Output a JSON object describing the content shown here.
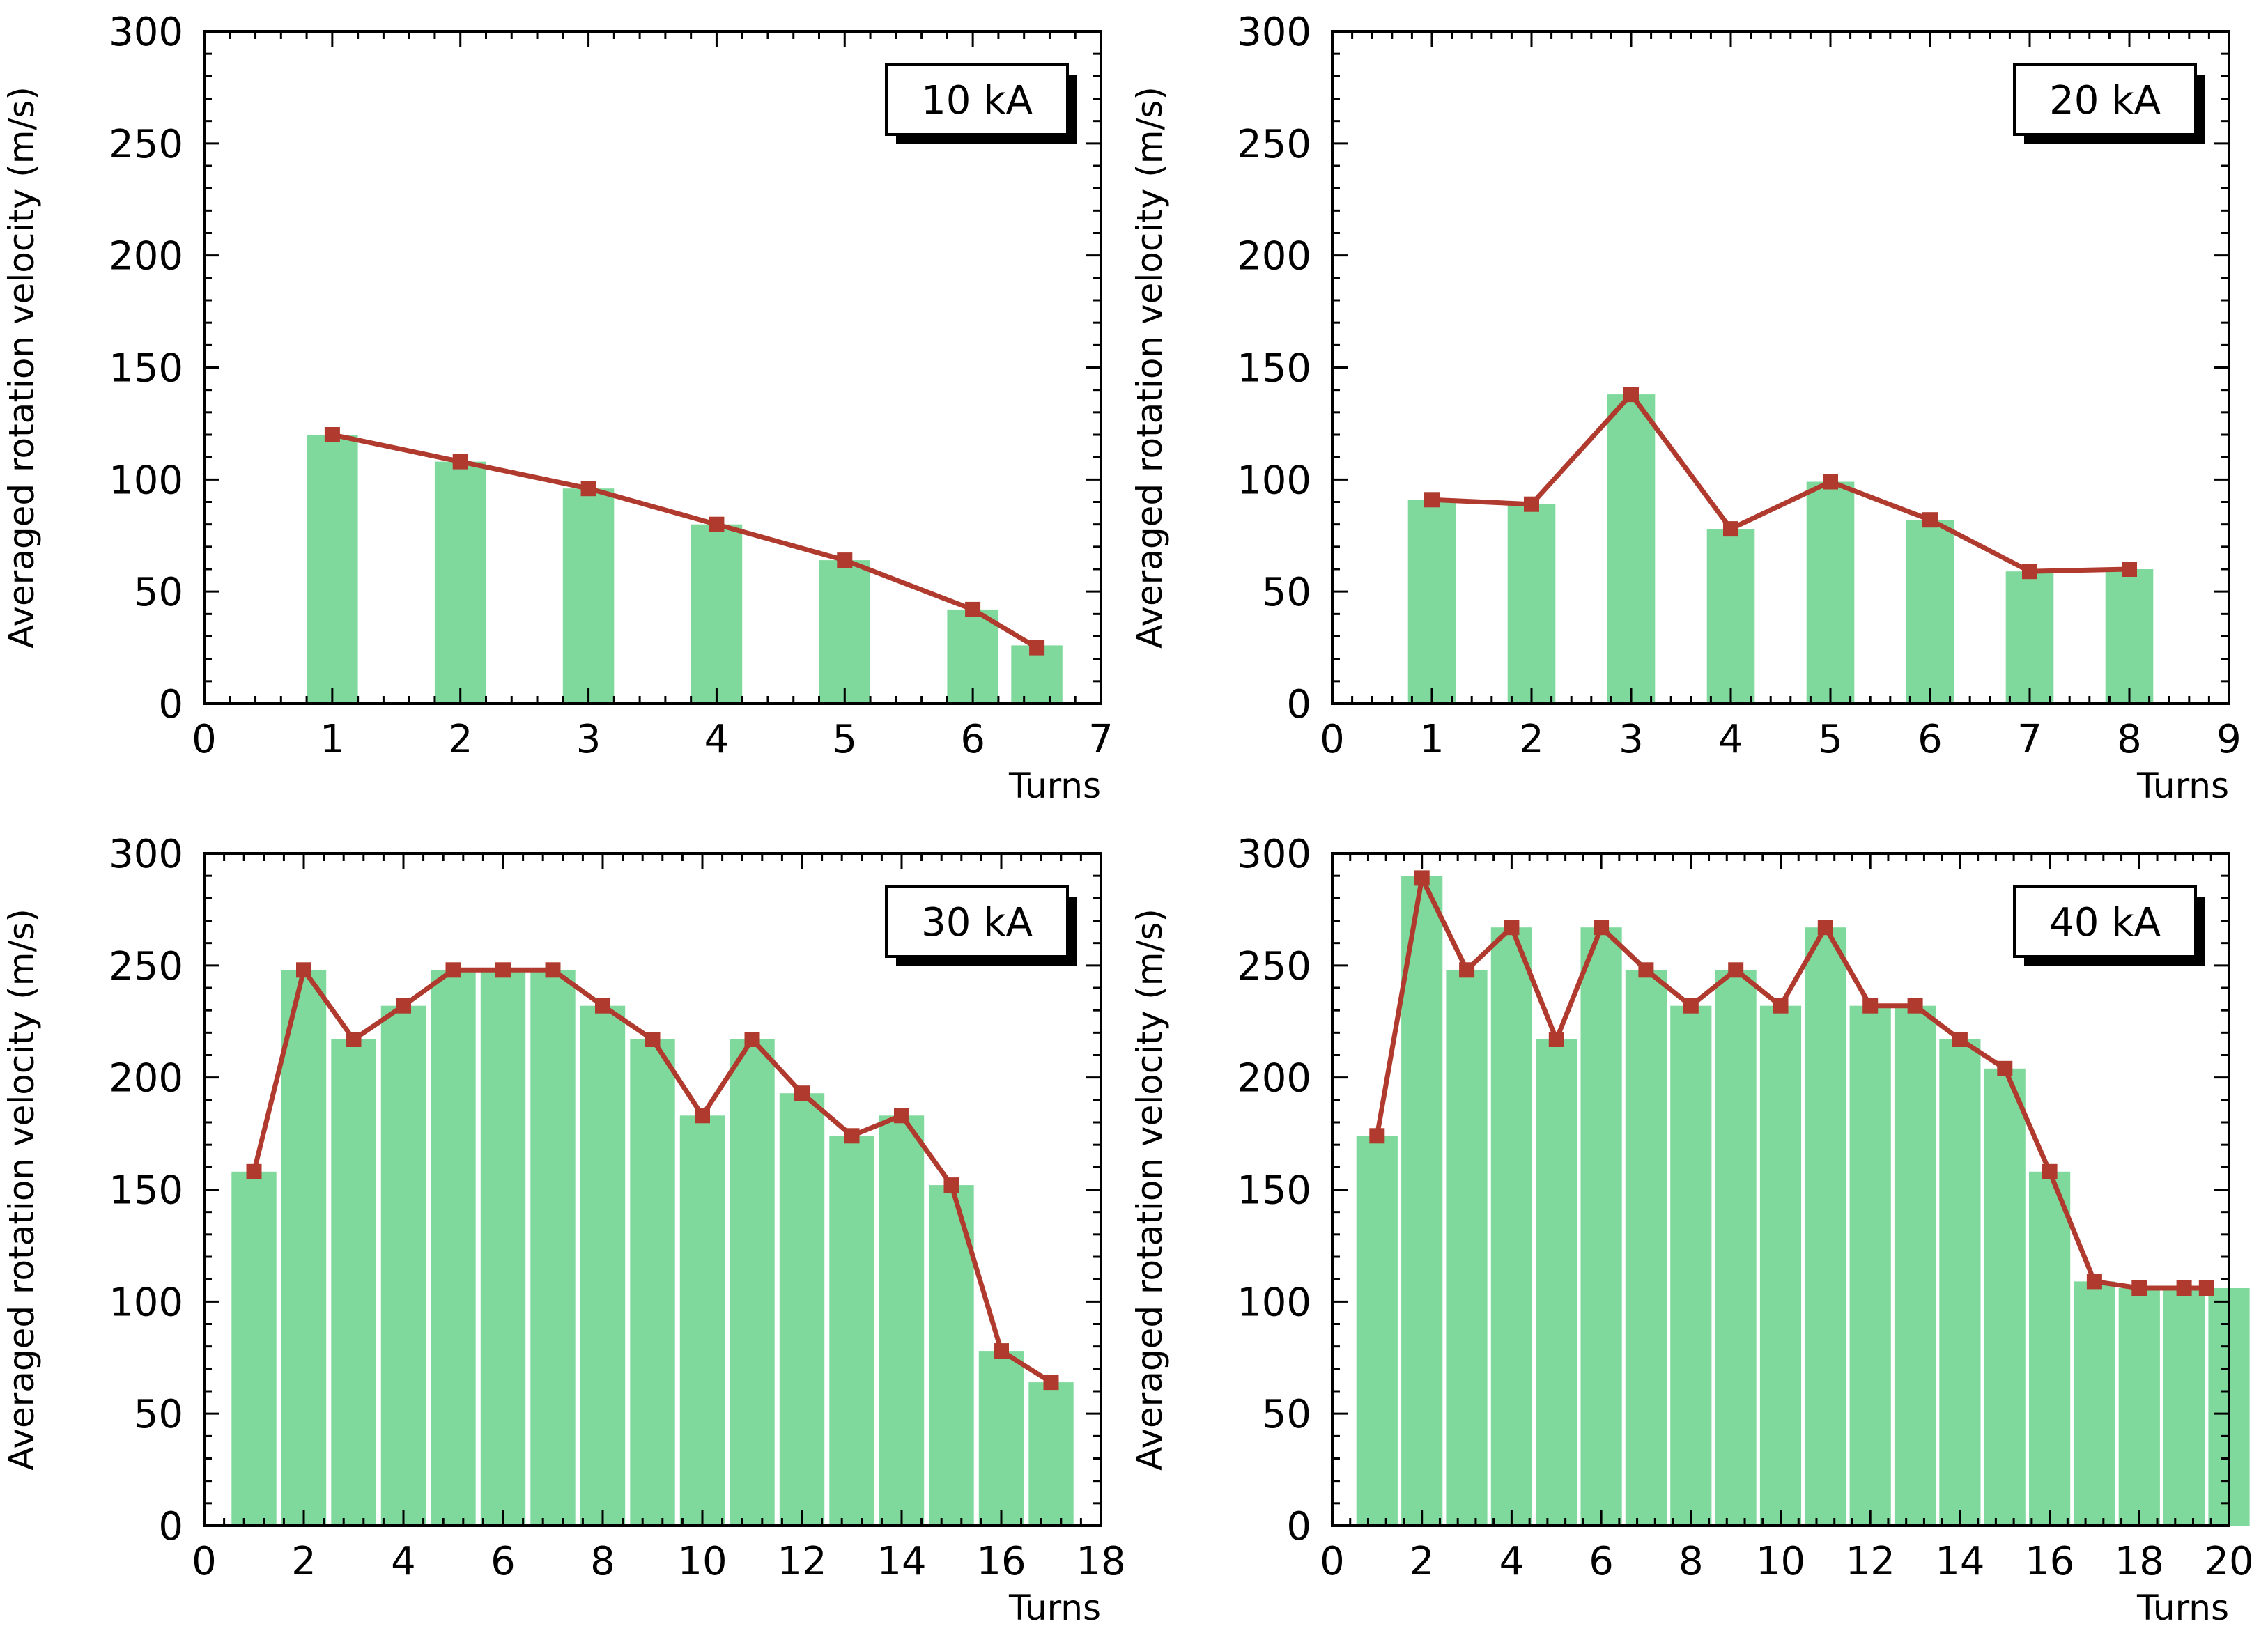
{
  "colors": {
    "bar": "#7fd99c",
    "line": "#b03a2e",
    "marker": "#b03a2e",
    "axis": "#000000",
    "background": "#ffffff"
  },
  "chart_data": [
    {
      "type": "bar+line",
      "panel": "top-left",
      "annotation": "10 kA",
      "xlabel": "Turns",
      "ylabel": "Averaged rotation velocity (m/s)",
      "xlim": [
        0,
        7
      ],
      "ylim": [
        0,
        300
      ],
      "xticks": [
        0,
        1,
        2,
        3,
        4,
        5,
        6,
        7
      ],
      "yticks": [
        0,
        50,
        100,
        150,
        200,
        250,
        300
      ],
      "bars": {
        "x": [
          1,
          2,
          3,
          4,
          5,
          6,
          6.5
        ],
        "values": [
          120,
          108,
          96,
          80,
          64,
          42,
          26
        ],
        "width": 0.4
      },
      "line": {
        "x": [
          1,
          2,
          3,
          4,
          5,
          6,
          6.5
        ],
        "values": [
          120,
          108,
          96,
          80,
          64,
          42,
          25
        ]
      }
    },
    {
      "type": "bar+line",
      "panel": "top-right",
      "annotation": "20 kA",
      "xlabel": "Turns",
      "ylabel": "Averaged rotation velocity (m/s)",
      "xlim": [
        0,
        9
      ],
      "ylim": [
        0,
        300
      ],
      "xticks": [
        0,
        1,
        2,
        3,
        4,
        5,
        6,
        7,
        8,
        9
      ],
      "yticks": [
        0,
        50,
        100,
        150,
        200,
        250,
        300
      ],
      "bars": {
        "x": [
          1,
          2,
          3,
          4,
          5,
          6,
          7,
          8
        ],
        "values": [
          91,
          89,
          138,
          78,
          99,
          82,
          59,
          60
        ],
        "width": 0.48
      },
      "line": {
        "x": [
          1,
          2,
          3,
          4,
          5,
          6,
          7,
          8
        ],
        "values": [
          91,
          89,
          138,
          78,
          99,
          82,
          59,
          60
        ]
      }
    },
    {
      "type": "bar+line",
      "panel": "bottom-left",
      "annotation": "30 kA",
      "xlabel": "Turns",
      "ylabel": "Averaged rotation velocity (m/s)",
      "xlim": [
        0,
        18
      ],
      "ylim": [
        0,
        300
      ],
      "xticks": [
        0,
        2,
        4,
        6,
        8,
        10,
        12,
        14,
        16,
        18
      ],
      "yticks": [
        0,
        50,
        100,
        150,
        200,
        250,
        300
      ],
      "bars": {
        "x": [
          1,
          2,
          3,
          4,
          5,
          6,
          7,
          8,
          9,
          10,
          11,
          12,
          13,
          14,
          15,
          16,
          17
        ],
        "values": [
          158,
          248,
          217,
          232,
          248,
          248,
          248,
          232,
          217,
          183,
          217,
          193,
          174,
          183,
          152,
          78,
          64
        ],
        "width": 0.9
      },
      "line": {
        "x": [
          1,
          2,
          3,
          4,
          5,
          6,
          7,
          8,
          9,
          10,
          11,
          12,
          13,
          14,
          15,
          16,
          17
        ],
        "values": [
          158,
          248,
          217,
          232,
          248,
          248,
          248,
          232,
          217,
          183,
          217,
          193,
          174,
          183,
          152,
          78,
          64
        ]
      }
    },
    {
      "type": "bar+line",
      "panel": "bottom-right",
      "annotation": "40 kA",
      "xlabel": "Turns",
      "ylabel": "Averaged rotation velocity (m/s)",
      "xlim": [
        0,
        20
      ],
      "ylim": [
        0,
        300
      ],
      "xticks": [
        0,
        2,
        4,
        6,
        8,
        10,
        12,
        14,
        16,
        18,
        20
      ],
      "yticks": [
        0,
        50,
        100,
        150,
        200,
        250,
        300
      ],
      "bars": {
        "x": [
          1,
          2,
          3,
          4,
          5,
          6,
          7,
          8,
          9,
          10,
          11,
          12,
          13,
          14,
          15,
          16,
          17,
          18,
          19,
          20
        ],
        "values": [
          174,
          290,
          248,
          267,
          217,
          267,
          248,
          232,
          248,
          232,
          267,
          232,
          232,
          217,
          204,
          158,
          109,
          106,
          106,
          106
        ],
        "width": 0.92
      },
      "line": {
        "x": [
          1,
          2,
          3,
          4,
          5,
          6,
          7,
          8,
          9,
          10,
          11,
          12,
          13,
          14,
          15,
          16,
          17,
          18,
          19,
          19.5
        ],
        "values": [
          174,
          289,
          248,
          267,
          217,
          267,
          248,
          232,
          248,
          232,
          267,
          232,
          232,
          217,
          204,
          158,
          109,
          106,
          106,
          106
        ]
      }
    }
  ]
}
